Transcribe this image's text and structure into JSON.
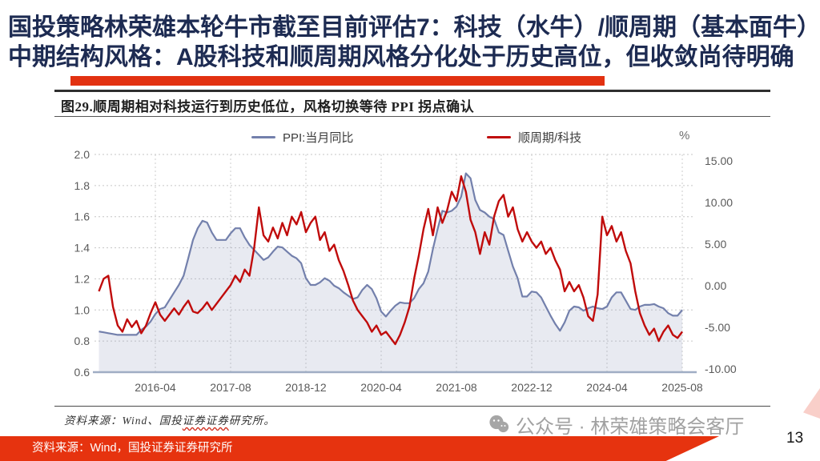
{
  "slide": {
    "title_line1": "国投策略林荣雄本轮牛市截至目前评估7：科技（水牛）/顺周期（基本面牛）",
    "title_line2": "中期结构风格：A股科技和顺周期风格分化处于历史高位，但收敛尚待明确",
    "page_number": "13",
    "accent_color": "#e23110",
    "title_color": "#1d2b52"
  },
  "figure": {
    "title": "图29.顺周期相对科技运行到历史低位，风格切换等待 PPI 拐点确认",
    "unit_label": "%",
    "source_note": {
      "part1": "资料来源：Wind、国投",
      "part2_wavy": "证券证券",
      "part3": "研究所。"
    }
  },
  "footer": {
    "source_text": "资料来源：Wind，国投证券证券研究所"
  },
  "watermark": {
    "icon": "wechat-icon",
    "text": "公众号 · 林荣雄策略会客厅"
  },
  "chart_data": {
    "type": "line",
    "title": "顺周期相对科技运行到历史低位，风格切换等待PPI拐点确认",
    "frequency": "monthly",
    "x_start": "2015-04",
    "x_end": "2025-08",
    "x_tick_labels": [
      "2016-04",
      "2017-08",
      "2018-12",
      "2020-04",
      "2021-08",
      "2022-12",
      "2024-04",
      "2025-08"
    ],
    "x_tick_indices": [
      12,
      28,
      44,
      60,
      76,
      92,
      108,
      124
    ],
    "grid": true,
    "legend_position": "top",
    "left_axis": {
      "ticks": [
        "2.0",
        "1.8",
        "1.6",
        "1.4",
        "1.2",
        "1.0",
        "0.8",
        "0.6"
      ],
      "min": 0.6,
      "max": 2.0,
      "series": "顺周期/科技"
    },
    "right_axis": {
      "ticks": [
        "15.00",
        "10.00",
        "5.00",
        "0.00",
        "-5.00",
        "-10.00"
      ],
      "min": -10,
      "max": 15,
      "unit": "%",
      "series": "PPI:当月同比"
    },
    "series": [
      {
        "name": "PPI:当月同比",
        "axis": "right",
        "color": "#7380ac",
        "style": "line_with_area",
        "area_color": "rgba(148,158,192,0.22)",
        "values": [
          -5.5,
          -5.6,
          -5.7,
          -5.8,
          -5.9,
          -5.9,
          -5.9,
          -5.9,
          -5.9,
          -5.3,
          -4.9,
          -4.3,
          -3.4,
          -2.8,
          -2.6,
          -1.7,
          -0.8,
          0.1,
          1.2,
          3.3,
          5.5,
          6.9,
          7.8,
          7.6,
          6.4,
          5.5,
          5.5,
          5.5,
          6.3,
          6.9,
          6.9,
          5.8,
          4.9,
          4.3,
          3.7,
          3.1,
          3.4,
          4.1,
          4.7,
          4.6,
          4.1,
          3.6,
          3.3,
          2.7,
          0.9,
          0.1,
          0.1,
          0.4,
          0.9,
          0.6,
          0.0,
          -0.3,
          -0.8,
          -1.2,
          -1.6,
          -1.4,
          -0.5,
          0.1,
          -0.4,
          -1.5,
          -3.1,
          -3.7,
          -3.0,
          -2.4,
          -2.0,
          -2.1,
          -2.1,
          -1.5,
          -0.4,
          0.3,
          1.7,
          4.4,
          6.8,
          9.0,
          8.8,
          9.0,
          9.5,
          10.7,
          13.5,
          12.9,
          10.3,
          9.1,
          8.8,
          8.3,
          8.0,
          6.4,
          6.1,
          4.2,
          2.3,
          0.9,
          -1.3,
          -1.3,
          -0.7,
          -0.8,
          -1.4,
          -2.5,
          -3.6,
          -4.6,
          -5.4,
          -4.4,
          -3.0,
          -2.5,
          -2.6,
          -3.0,
          -2.7,
          -2.5,
          -2.7,
          -2.8,
          -2.5,
          -1.4,
          -0.8,
          -0.8,
          -1.8,
          -2.8,
          -2.9,
          -2.5,
          -2.3,
          -2.3,
          -2.2,
          -2.5,
          -2.7,
          -3.3,
          -3.6,
          -3.6,
          -2.9
        ]
      },
      {
        "name": "顺周期/科技",
        "axis": "left",
        "color": "#c00b0b",
        "style": "line",
        "values": [
          1.12,
          1.2,
          1.22,
          1.02,
          0.9,
          0.86,
          0.94,
          0.89,
          0.93,
          0.85,
          0.9,
          0.98,
          1.05,
          0.97,
          0.93,
          0.97,
          1.01,
          0.97,
          1.02,
          1.06,
          0.99,
          0.98,
          1.01,
          1.05,
          1.0,
          1.04,
          1.08,
          1.12,
          1.16,
          1.22,
          1.18,
          1.26,
          1.22,
          1.4,
          1.66,
          1.48,
          1.44,
          1.53,
          1.46,
          1.56,
          1.48,
          1.6,
          1.55,
          1.63,
          1.5,
          1.56,
          1.6,
          1.45,
          1.5,
          1.38,
          1.42,
          1.32,
          1.25,
          1.16,
          1.06,
          1.0,
          0.96,
          0.92,
          0.86,
          0.9,
          0.84,
          0.86,
          0.82,
          0.78,
          0.84,
          0.92,
          1.02,
          1.2,
          1.35,
          1.52,
          1.65,
          1.48,
          1.66,
          1.56,
          1.64,
          1.76,
          1.7,
          1.86,
          1.76,
          1.58,
          1.5,
          1.36,
          1.5,
          1.42,
          1.6,
          1.7,
          1.74,
          1.6,
          1.66,
          1.52,
          1.44,
          1.5,
          1.44,
          1.4,
          1.44,
          1.36,
          1.4,
          1.32,
          1.26,
          1.12,
          1.18,
          1.12,
          1.16,
          1.08,
          0.96,
          0.93,
          1.1,
          1.6,
          1.48,
          1.54,
          1.44,
          1.5,
          1.38,
          1.3,
          1.12,
          0.98,
          0.9,
          0.84,
          0.88,
          0.8,
          0.86,
          0.9,
          0.84,
          0.82,
          0.86
        ]
      }
    ]
  }
}
